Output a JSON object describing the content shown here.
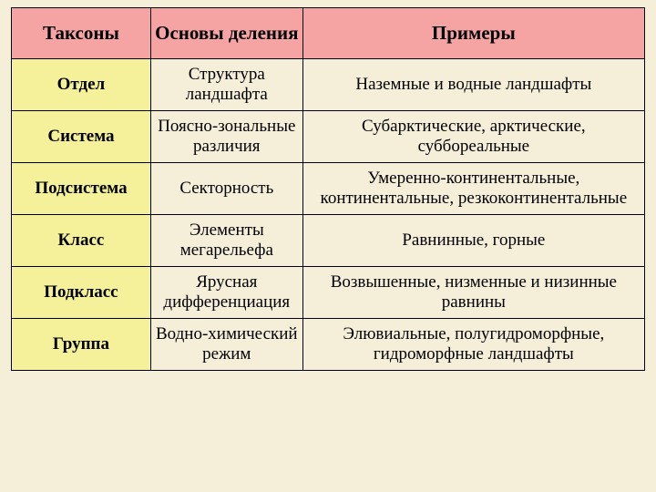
{
  "table": {
    "header_bg": "#f5a3a3",
    "taxon_col_bg": "#f5f09a",
    "body_bg": "#f5eed8",
    "border_color": "#000000",
    "header_fontsize": 21,
    "body_fontsize": 19,
    "row_height_header": 56,
    "col_widths_pct": [
      22,
      24,
      54
    ],
    "columns": [
      "Таксоны",
      "Основы деления",
      "Примеры"
    ],
    "rows": [
      {
        "taxon": "Отдел",
        "basis": "Структура ландшафта",
        "examples": "Наземные и водные ландшафты"
      },
      {
        "taxon": "Система",
        "basis": "Поясно-зональные различия",
        "examples": "Субарктические, арктические, суббореальные"
      },
      {
        "taxon": "Подсистема",
        "basis": "Секторность",
        "examples": "Умеренно-континентальные, континентальные, резкоконтинентальные"
      },
      {
        "taxon": "Класс",
        "basis": "Элементы мегарельефа",
        "examples": "Равнинные, горные"
      },
      {
        "taxon": "Подкласс",
        "basis": "Ярусная дифференциация",
        "examples": "Возвышенные, низменные и низинные равнины"
      },
      {
        "taxon": "Группа",
        "basis": "Водно-химический режим",
        "examples": "Элювиальные, полугидроморфные, гидроморфные ландшафты"
      }
    ]
  }
}
